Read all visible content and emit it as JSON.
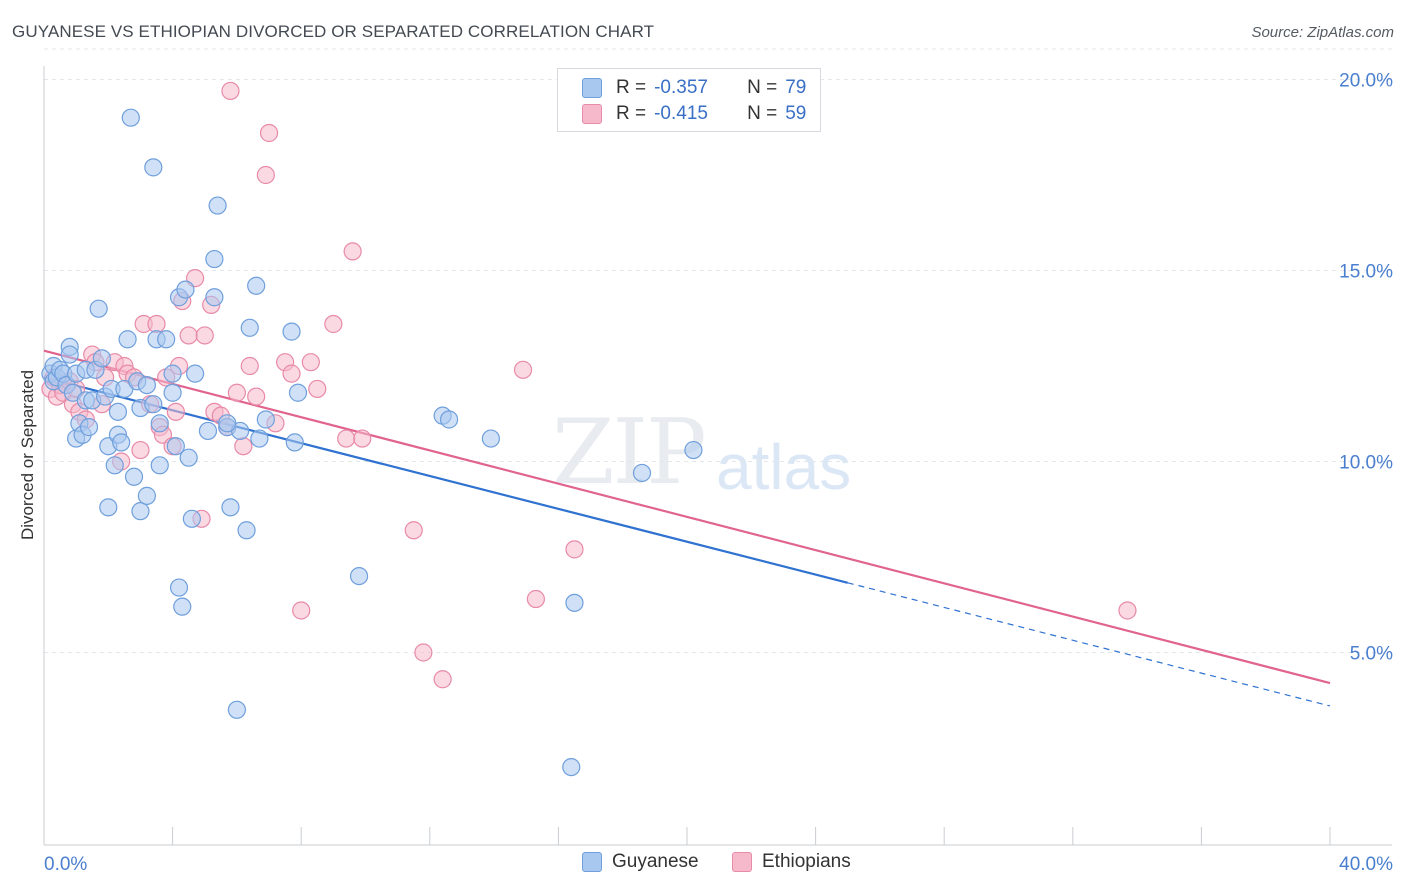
{
  "title": "GUYANESE VS ETHIOPIAN DIVORCED OR SEPARATED CORRELATION CHART",
  "source": "Source: ZipAtlas.com",
  "watermark": {
    "zip": "ZIP",
    "atlas": "atlas"
  },
  "legend": {
    "rows": [
      {
        "r_label": "R =",
        "r_value": "-0.357",
        "n_label": "N =",
        "n_value": "79"
      },
      {
        "r_label": "R =",
        "r_value": "-0.415",
        "n_label": "N =",
        "n_value": "59"
      }
    ]
  },
  "colors": {
    "guyanese_fill": "#a9c8f0",
    "guyanese_stroke": "#6f9fdc",
    "guyanese_line": "#2f72d0",
    "ethiopians_fill": "#f6b9cc",
    "ethiopians_stroke": "#e88aa8",
    "ethiopians_line": "#e0648e"
  },
  "chart_data": {
    "type": "scatter",
    "title": "GUYANESE VS ETHIOPIAN DIVORCED OR SEPARATED CORRELATION CHART",
    "xlabel": "",
    "ylabel": "Divorced or Separated",
    "xlim": [
      0,
      40
    ],
    "ylim": [
      0,
      20.8
    ],
    "x_tick_labels": [
      "0.0%",
      "40.0%"
    ],
    "y_ticks": [
      5,
      10,
      15,
      20
    ],
    "y_tick_labels": [
      "5.0%",
      "10.0%",
      "15.0%",
      "20.0%"
    ],
    "grid": true,
    "legend_position": "top-center",
    "series": [
      {
        "name": "Guyanese",
        "r": -0.357,
        "n": 79,
        "trend": {
          "x_solid": [
            0,
            25
          ],
          "x_dashed": [
            25,
            40
          ],
          "y_at_0": 12.2,
          "y_at_40": 3.6
        },
        "points": [
          [
            0.2,
            12.3
          ],
          [
            0.3,
            12.5
          ],
          [
            0.3,
            12.1
          ],
          [
            0.4,
            12.2
          ],
          [
            0.5,
            12.4
          ],
          [
            0.6,
            12.3
          ],
          [
            0.7,
            12.0
          ],
          [
            0.8,
            13.0
          ],
          [
            0.8,
            12.8
          ],
          [
            0.9,
            11.8
          ],
          [
            1.0,
            12.3
          ],
          [
            1.0,
            10.6
          ],
          [
            1.1,
            11.0
          ],
          [
            1.2,
            10.7
          ],
          [
            1.3,
            11.6
          ],
          [
            1.3,
            12.4
          ],
          [
            1.4,
            10.9
          ],
          [
            1.5,
            11.6
          ],
          [
            1.6,
            12.4
          ],
          [
            1.7,
            14.0
          ],
          [
            1.8,
            12.7
          ],
          [
            1.9,
            11.7
          ],
          [
            2.0,
            10.4
          ],
          [
            2.0,
            8.8
          ],
          [
            2.1,
            11.9
          ],
          [
            2.2,
            9.9
          ],
          [
            2.3,
            10.7
          ],
          [
            2.3,
            11.3
          ],
          [
            2.4,
            10.5
          ],
          [
            2.5,
            11.9
          ],
          [
            2.6,
            13.2
          ],
          [
            2.7,
            19.0
          ],
          [
            2.8,
            9.6
          ],
          [
            2.9,
            12.1
          ],
          [
            3.0,
            11.4
          ],
          [
            3.0,
            8.7
          ],
          [
            3.2,
            12.0
          ],
          [
            3.2,
            9.1
          ],
          [
            3.4,
            11.5
          ],
          [
            3.4,
            17.7
          ],
          [
            3.5,
            13.2
          ],
          [
            3.6,
            11.0
          ],
          [
            3.6,
            9.9
          ],
          [
            3.8,
            13.2
          ],
          [
            4.0,
            12.3
          ],
          [
            4.0,
            11.8
          ],
          [
            4.1,
            10.4
          ],
          [
            4.2,
            6.7
          ],
          [
            4.3,
            6.2
          ],
          [
            4.2,
            14.3
          ],
          [
            4.4,
            14.5
          ],
          [
            4.5,
            10.1
          ],
          [
            4.6,
            8.5
          ],
          [
            4.7,
            12.3
          ],
          [
            5.1,
            10.8
          ],
          [
            5.3,
            15.3
          ],
          [
            5.3,
            14.3
          ],
          [
            5.4,
            16.7
          ],
          [
            5.7,
            10.9
          ],
          [
            5.8,
            8.8
          ],
          [
            6.0,
            3.5
          ],
          [
            6.1,
            10.8
          ],
          [
            6.3,
            8.2
          ],
          [
            6.4,
            13.5
          ],
          [
            6.6,
            14.6
          ],
          [
            6.7,
            10.6
          ],
          [
            6.9,
            11.1
          ],
          [
            7.7,
            13.4
          ],
          [
            7.8,
            10.5
          ],
          [
            7.9,
            11.8
          ],
          [
            9.8,
            7.0
          ],
          [
            12.4,
            11.2
          ],
          [
            12.6,
            11.1
          ],
          [
            13.9,
            10.6
          ],
          [
            16.4,
            2.0
          ],
          [
            16.5,
            6.3
          ],
          [
            18.6,
            9.7
          ],
          [
            20.2,
            10.3
          ],
          [
            5.7,
            11.0
          ]
        ]
      },
      {
        "name": "Ethiopians",
        "r": -0.415,
        "n": 59,
        "trend": {
          "x_solid": [
            0,
            40
          ],
          "y_at_0": 12.9,
          "y_at_40": 4.2
        },
        "points": [
          [
            0.2,
            11.9
          ],
          [
            0.3,
            12.2
          ],
          [
            0.4,
            11.7
          ],
          [
            0.5,
            12.0
          ],
          [
            0.6,
            11.8
          ],
          [
            0.8,
            12.1
          ],
          [
            0.9,
            11.5
          ],
          [
            1.0,
            11.9
          ],
          [
            1.1,
            11.3
          ],
          [
            1.3,
            11.1
          ],
          [
            1.5,
            12.8
          ],
          [
            1.6,
            12.6
          ],
          [
            1.8,
            11.5
          ],
          [
            1.9,
            12.2
          ],
          [
            2.2,
            12.6
          ],
          [
            2.4,
            10.0
          ],
          [
            2.5,
            12.5
          ],
          [
            2.6,
            12.3
          ],
          [
            2.8,
            12.2
          ],
          [
            3.0,
            10.3
          ],
          [
            3.1,
            13.6
          ],
          [
            3.3,
            11.5
          ],
          [
            3.5,
            13.6
          ],
          [
            3.6,
            10.9
          ],
          [
            3.7,
            10.7
          ],
          [
            3.8,
            12.2
          ],
          [
            4.0,
            10.4
          ],
          [
            4.1,
            11.3
          ],
          [
            4.2,
            12.5
          ],
          [
            4.3,
            14.2
          ],
          [
            4.5,
            13.3
          ],
          [
            4.7,
            14.8
          ],
          [
            4.9,
            8.5
          ],
          [
            5.0,
            13.3
          ],
          [
            5.2,
            14.1
          ],
          [
            5.3,
            11.3
          ],
          [
            5.5,
            11.2
          ],
          [
            5.7,
            10.9
          ],
          [
            5.8,
            19.7
          ],
          [
            6.0,
            11.8
          ],
          [
            6.2,
            10.4
          ],
          [
            6.4,
            12.5
          ],
          [
            6.6,
            11.7
          ],
          [
            6.9,
            17.5
          ],
          [
            7.0,
            18.6
          ],
          [
            7.2,
            11.0
          ],
          [
            7.5,
            12.6
          ],
          [
            7.7,
            12.3
          ],
          [
            8.0,
            6.1
          ],
          [
            8.3,
            12.6
          ],
          [
            8.5,
            11.9
          ],
          [
            9.0,
            13.6
          ],
          [
            9.4,
            10.6
          ],
          [
            9.6,
            15.5
          ],
          [
            9.9,
            10.6
          ],
          [
            11.5,
            8.2
          ],
          [
            11.8,
            5.0
          ],
          [
            12.4,
            4.3
          ],
          [
            14.9,
            12.4
          ]
        ],
        "extra_points": [
          [
            15.3,
            6.4
          ],
          [
            16.5,
            7.7
          ],
          [
            33.7,
            6.1
          ]
        ]
      }
    ]
  }
}
